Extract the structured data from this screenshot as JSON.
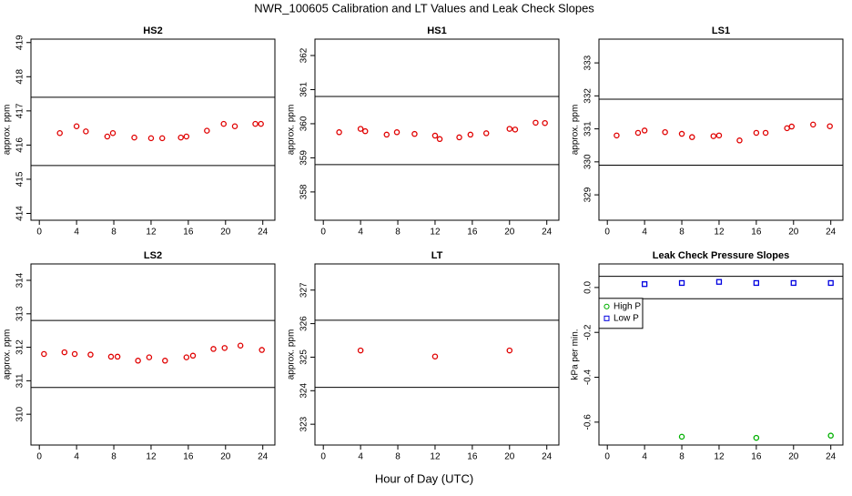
{
  "title": "NWR_100605  Calibration and LT Values and Leak Check Slopes",
  "x_label": "Hour of Day (UTC)",
  "chart_data": [
    {
      "type": "scatter",
      "title": "HS2",
      "y_label": "approx. ppm",
      "xlim": [
        -0.9,
        25.3
      ],
      "xticks": [
        0,
        4,
        8,
        12,
        16,
        20,
        24
      ],
      "ylim": [
        413.8,
        419.1
      ],
      "yticks": [
        414,
        415,
        416,
        417,
        418,
        419
      ],
      "reference_lines": [
        417.4,
        415.4
      ],
      "series": [
        {
          "color": "#e00000",
          "marker": "circle",
          "x": [
            2.2,
            4.0,
            5.0,
            7.3,
            7.9,
            10.2,
            12.0,
            13.2,
            15.2,
            15.8,
            18.0,
            19.8,
            21.0,
            23.2,
            23.8
          ],
          "values": [
            416.35,
            416.55,
            416.4,
            416.25,
            416.35,
            416.22,
            416.2,
            416.2,
            416.22,
            416.25,
            416.42,
            416.62,
            416.55,
            416.62,
            416.62
          ]
        }
      ]
    },
    {
      "type": "scatter",
      "title": "HS1",
      "y_label": "approx. ppm",
      "xlim": [
        -0.9,
        25.3
      ],
      "xticks": [
        0,
        4,
        8,
        12,
        16,
        20,
        24
      ],
      "ylim": [
        357.17,
        362.48
      ],
      "yticks": [
        358,
        359,
        360,
        361,
        362
      ],
      "reference_lines": [
        360.8,
        358.8
      ],
      "series": [
        {
          "color": "#e00000",
          "marker": "circle",
          "x": [
            1.7,
            4.0,
            4.5,
            6.8,
            7.9,
            9.8,
            12.0,
            12.5,
            14.6,
            15.8,
            17.5,
            20.0,
            20.6,
            22.8,
            23.8
          ],
          "values": [
            359.75,
            359.85,
            359.78,
            359.68,
            359.75,
            359.7,
            359.65,
            359.55,
            359.6,
            359.68,
            359.72,
            359.85,
            359.83,
            360.03,
            360.02
          ]
        }
      ]
    },
    {
      "type": "scatter",
      "title": "LS1",
      "y_label": "approx. ppm",
      "xlim": [
        -0.9,
        25.3
      ],
      "xticks": [
        0,
        4,
        8,
        12,
        16,
        20,
        24
      ],
      "ylim": [
        328.23,
        333.72
      ],
      "yticks": [
        329,
        330,
        331,
        332,
        333
      ],
      "reference_lines": [
        331.9,
        329.9
      ],
      "series": [
        {
          "color": "#e00000",
          "marker": "circle",
          "x": [
            1.0,
            3.3,
            4.0,
            6.2,
            8.0,
            9.1,
            11.4,
            12.0,
            14.2,
            16.0,
            17.0,
            19.3,
            19.8,
            22.1,
            23.9
          ],
          "values": [
            330.8,
            330.88,
            330.95,
            330.9,
            330.85,
            330.75,
            330.78,
            330.8,
            330.65,
            330.88,
            330.88,
            331.02,
            331.07,
            331.13,
            331.08
          ]
        }
      ]
    },
    {
      "type": "scatter",
      "title": "LS2",
      "y_label": "approx. ppm",
      "xlim": [
        -0.9,
        25.3
      ],
      "xticks": [
        0,
        4,
        8,
        12,
        16,
        20,
        24
      ],
      "ylim": [
        309.08,
        314.49
      ],
      "yticks": [
        310,
        311,
        312,
        313,
        314
      ],
      "reference_lines": [
        312.8,
        310.8
      ],
      "series": [
        {
          "color": "#e00000",
          "marker": "circle",
          "x": [
            0.5,
            2.7,
            3.8,
            5.5,
            7.7,
            8.4,
            10.6,
            11.8,
            13.5,
            15.8,
            16.5,
            18.7,
            19.9,
            21.6,
            23.9
          ],
          "values": [
            311.8,
            311.85,
            311.8,
            311.78,
            311.72,
            311.72,
            311.6,
            311.7,
            311.6,
            311.7,
            311.75,
            311.95,
            311.98,
            312.05,
            311.92
          ]
        }
      ]
    },
    {
      "type": "scatter",
      "title": "LT",
      "y_label": "approx. ppm",
      "xlim": [
        -0.9,
        25.3
      ],
      "xticks": [
        0,
        4,
        8,
        12,
        16,
        20,
        24
      ],
      "ylim": [
        322.38,
        327.78
      ],
      "yticks": [
        323,
        324,
        325,
        326,
        327
      ],
      "reference_lines": [
        326.1,
        324.1
      ],
      "series": [
        {
          "color": "#e00000",
          "marker": "circle",
          "x": [
            4,
            12,
            20
          ],
          "values": [
            325.2,
            325.02,
            325.2
          ]
        }
      ]
    },
    {
      "type": "scatter",
      "title": "Leak Check Pressure Slopes",
      "y_label": "kPa per min.",
      "xlim": [
        -0.9,
        25.3
      ],
      "xticks": [
        0,
        4,
        8,
        12,
        16,
        20,
        24
      ],
      "ylim": [
        -0.702,
        0.105
      ],
      "yticks": [
        -0.6,
        -0.4,
        -0.2,
        {
          "value": 0,
          "label": "0.0"
        }
      ],
      "reference_lines": [
        0.05,
        -0.05
      ],
      "legend": "top-left",
      "series": [
        {
          "name": "High P",
          "color": "#00b000",
          "marker": "circle",
          "x": [
            8,
            16,
            24
          ],
          "values": [
            -0.665,
            -0.67,
            -0.66
          ]
        },
        {
          "name": "Low P",
          "color": "#0000e0",
          "marker": "square",
          "x": [
            4,
            8,
            12,
            16,
            20,
            24
          ],
          "values": [
            0.015,
            0.02,
            0.025,
            0.02,
            0.02,
            0.02
          ]
        }
      ]
    }
  ]
}
